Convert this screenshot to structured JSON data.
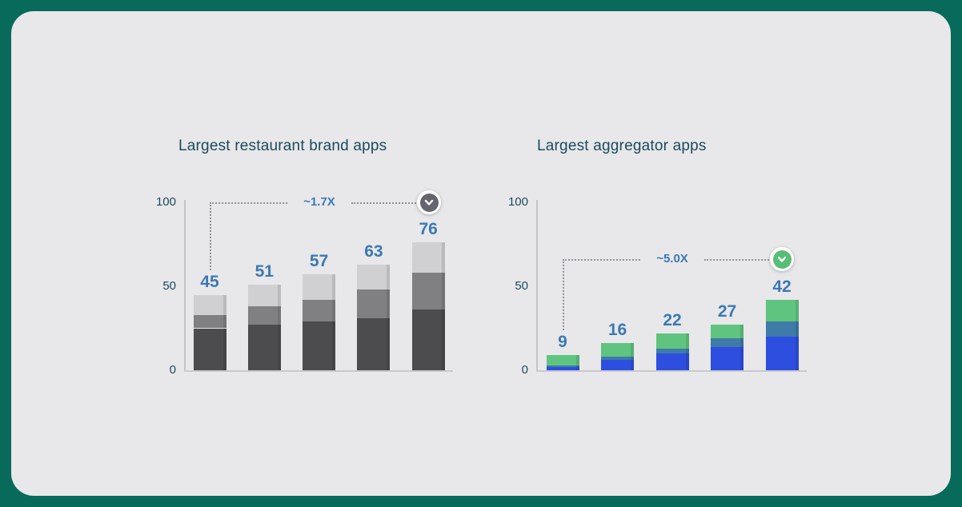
{
  "page": {
    "background": "#086a5b"
  },
  "card": {
    "background": "#e8e7e9"
  },
  "chart_data": [
    {
      "type": "bar",
      "stacked": true,
      "title": "Largest restaurant brand apps",
      "ylim": [
        0,
        100
      ],
      "yticks": [
        0,
        50,
        100
      ],
      "grid": false,
      "legend": "none",
      "x_axis_labels": [],
      "bar_totals": [
        45,
        51,
        57,
        63,
        76
      ],
      "series": [
        {
          "name": "dark-gray-segment",
          "color": "#4c4c4e",
          "values": [
            25,
            27,
            29,
            31,
            36
          ]
        },
        {
          "name": "mid-gray-segment",
          "color": "#808083",
          "values": [
            8,
            11,
            13,
            17,
            22
          ]
        },
        {
          "name": "light-gray-segment",
          "color": "#d0d0d3",
          "values": [
            12,
            13,
            15,
            15,
            18
          ]
        }
      ],
      "value_label_color": "#3b79b4",
      "axis_label_color": "#1a4b5e",
      "annotation": {
        "label": "~1.7X",
        "label_color": "#3b79b4",
        "line_y_value": 100,
        "badge_color": "#64656f",
        "icon": "chevron-down-icon"
      }
    },
    {
      "type": "bar",
      "stacked": true,
      "title": "Largest aggregator apps",
      "ylim": [
        0,
        100
      ],
      "yticks": [
        0,
        50,
        100
      ],
      "grid": false,
      "legend": "none",
      "x_axis_labels": [],
      "bar_totals": [
        9,
        16,
        22,
        27,
        42
      ],
      "series": [
        {
          "name": "blue-segment",
          "color": "#2e4ee0",
          "values": [
            2,
            6,
            10,
            14,
            20
          ]
        },
        {
          "name": "teal-segment",
          "color": "#3e7ba8",
          "values": [
            1,
            2,
            3,
            5,
            9
          ]
        },
        {
          "name": "green-segment",
          "color": "#5fc480",
          "values": [
            6,
            8,
            9,
            8,
            13
          ]
        }
      ],
      "value_label_color": "#3b79b4",
      "axis_label_color": "#1a4b5e",
      "annotation": {
        "label": "~5.0X",
        "label_color": "#3b79b4",
        "line_y_value": 66,
        "badge_color": "#57bd77",
        "icon": "chevron-down-icon"
      }
    }
  ]
}
